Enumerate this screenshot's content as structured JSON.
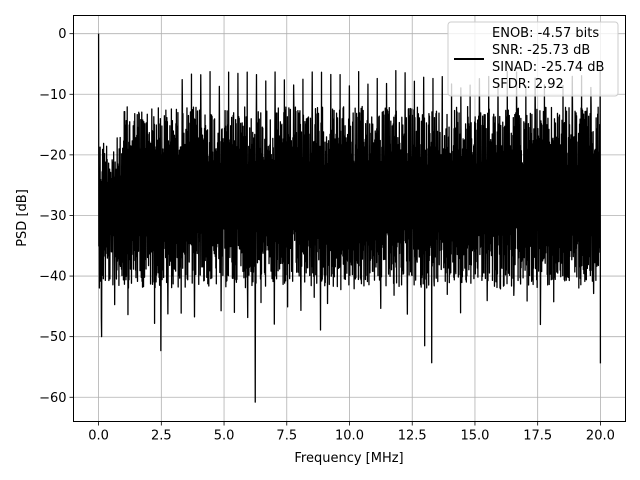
{
  "chart_data": {
    "type": "line",
    "title": "",
    "xlabel": "Frequency [MHz]",
    "ylabel": "PSD [dB]",
    "xlim": [
      -1.0,
      21.0
    ],
    "ylim": [
      -64.0,
      3.0
    ],
    "x_ticks": [
      0.0,
      2.5,
      5.0,
      7.5,
      10.0,
      12.5,
      15.0,
      17.5,
      20.0
    ],
    "x_tick_labels": [
      "0.0",
      "2.5",
      "5.0",
      "7.5",
      "10.0",
      "12.5",
      "15.0",
      "17.5",
      "20.0"
    ],
    "y_ticks": [
      0,
      -10,
      -20,
      -30,
      -40,
      -50,
      -60
    ],
    "y_tick_labels": [
      "0",
      "−10",
      "−20",
      "−30",
      "−40",
      "−50",
      "−60"
    ],
    "grid": true,
    "legend_position": "top-right",
    "series": [
      {
        "color": "#000000",
        "x_start": 0.0,
        "x_end": 20.0,
        "points": 2000,
        "noise_floor_db": [
          -36,
          -12
        ],
        "features": [
          {
            "x": 0.0,
            "y": 0.0
          },
          {
            "x": 0.12,
            "y": -50.0
          },
          {
            "x": 2.48,
            "y": -52.3
          },
          {
            "x": 6.24,
            "y": -60.8
          },
          {
            "x": 8.84,
            "y": -48.9
          },
          {
            "x": 13.0,
            "y": -51.5
          },
          {
            "x": 13.28,
            "y": -54.3
          },
          {
            "x": 20.0,
            "y": -54.4
          }
        ]
      }
    ],
    "legend_lines": [
      "ENOB: -4.57 bits",
      "SNR: -25.73 dB",
      "SINAD: -25.74 dB",
      "SFDR: 2.92"
    ]
  }
}
